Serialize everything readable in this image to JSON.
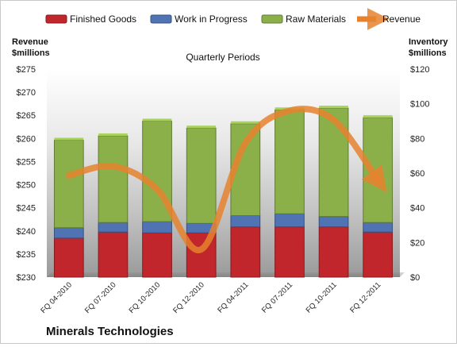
{
  "company": "Minerals Technologies",
  "chart_data": {
    "type": "bar",
    "stacked": true,
    "title": "Quarterly Periods",
    "categories": [
      "FQ 04-2010",
      "FQ 07-2010",
      "FQ 10-2010",
      "FQ 12-2010",
      "FQ 04-2011",
      "FQ 07-2011",
      "FQ 10-2011",
      "FQ 12-2011"
    ],
    "left_axis": {
      "label_line1": "Revenue",
      "label_line2": "$millions",
      "min": 230,
      "max": 275,
      "step": 5,
      "prefix": "$"
    },
    "right_axis": {
      "label_line1": "Inventory",
      "label_line2": "$millions",
      "min": 0,
      "max": 120,
      "step": 20,
      "prefix": "$"
    },
    "series": [
      {
        "name": "Finished Goods",
        "kind": "bar",
        "axis": "right",
        "color": "#c0262b",
        "values": [
          22.5,
          26,
          25.5,
          25.5,
          29,
          29,
          29,
          26
        ]
      },
      {
        "name": "Work in Progress",
        "kind": "bar",
        "axis": "right",
        "color": "#4f73b3",
        "values": [
          6,
          5.5,
          6.5,
          5.5,
          6.5,
          7.5,
          6,
          5.5
        ]
      },
      {
        "name": "Raw Materials",
        "kind": "bar",
        "axis": "right",
        "color": "#8bb04a",
        "values": [
          50.5,
          50,
          58,
          55,
          53,
          60,
          62.5,
          60.5
        ]
      },
      {
        "name": "Revenue",
        "kind": "line",
        "axis": "left",
        "color": "#e6822e",
        "values": [
          252,
          254,
          249,
          236,
          259,
          266,
          264,
          251
        ]
      }
    ],
    "grid": false,
    "legend_position": "top"
  }
}
